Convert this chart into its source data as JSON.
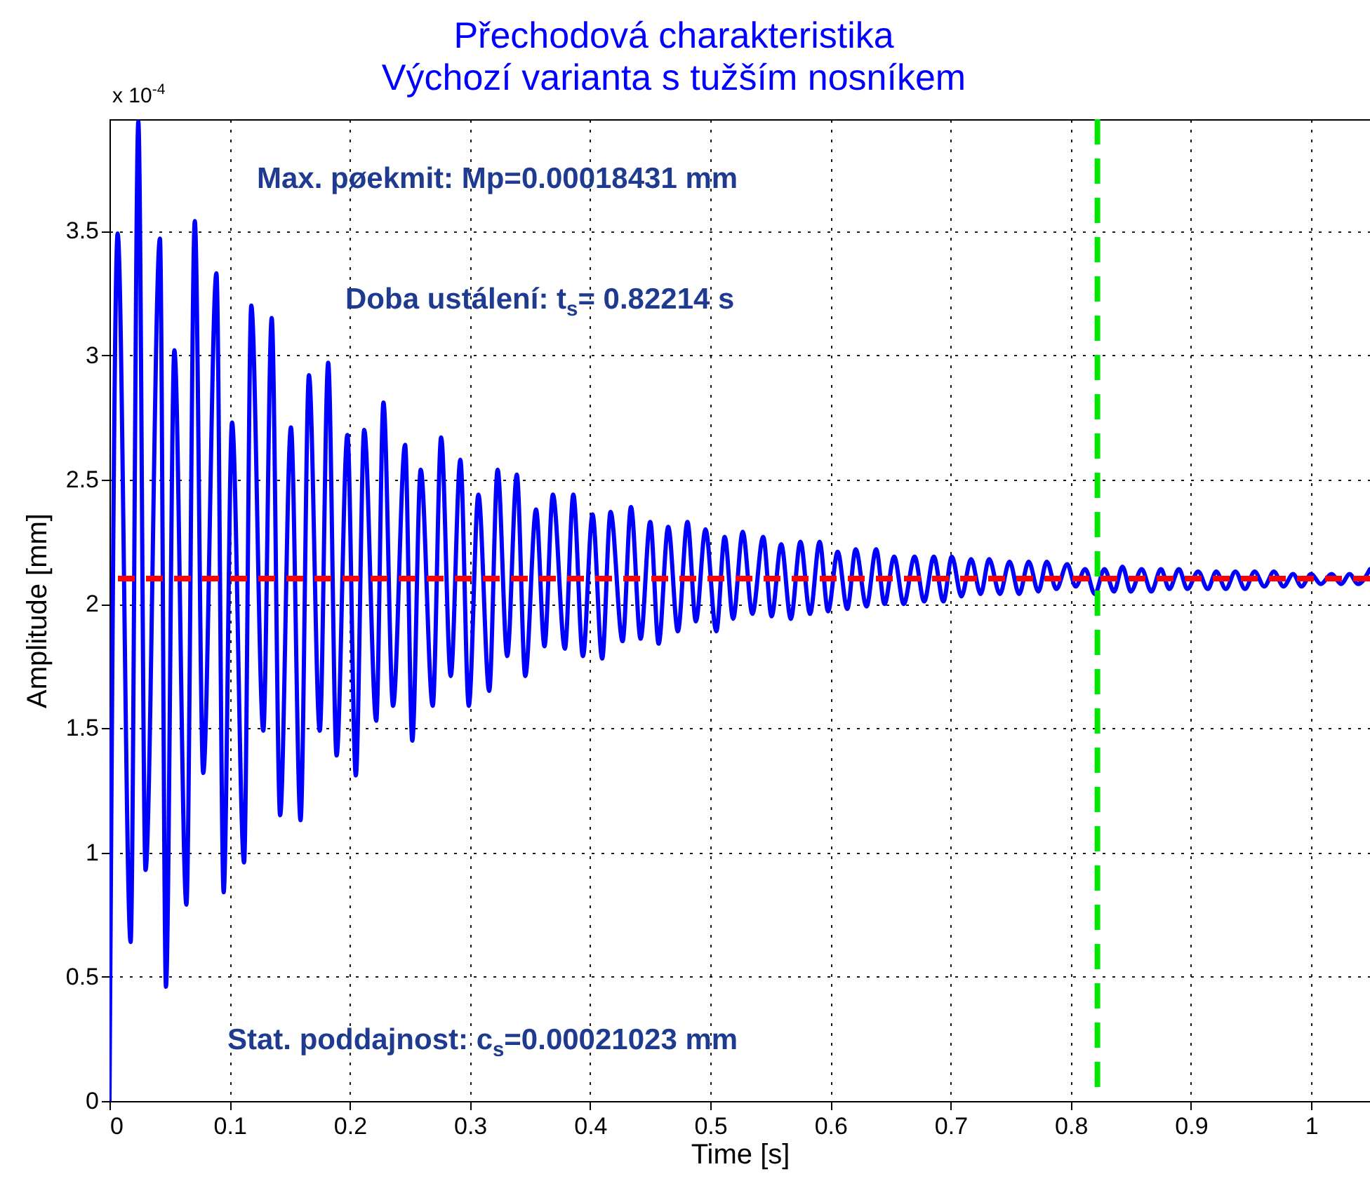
{
  "chart_data": {
    "type": "line",
    "title": "Přechodová charakteristika",
    "subtitle": "Výchozí varianta s tužším nosníkem",
    "xlabel": "Time [s]",
    "ylabel": "Amplitude [mm]",
    "annotations": [
      "x 10$^{-4}$",
      "Max. pøekmit: Mp=0.00018431 mm",
      "Doba ustálení: t$_{s}$= 0.82214 s",
      "Stat. poddajnost: c$_{s}$=0.00021023 mm"
    ],
    "xlim": [
      0,
      1.049
    ],
    "ylim": [
      0,
      3.95
    ],
    "xticks": [
      0,
      0.1,
      0.2,
      0.3,
      0.4,
      0.5,
      0.6,
      0.7,
      0.8,
      0.9,
      1
    ],
    "yticks": [
      0,
      0.5,
      1,
      1.5,
      2,
      2.5,
      3,
      3.5
    ],
    "grid": true,
    "line_style": "solid",
    "series": [
      {
        "color": "#0000ff",
        "x": [
          0,
          0.0068,
          0.0176,
          0.024,
          0.03,
          0.042,
          0.047,
          0.054,
          0.064,
          0.071,
          0.078,
          0.089,
          0.095,
          0.102,
          0.112,
          0.118,
          0.128,
          0.135,
          0.142,
          0.151,
          0.159,
          0.166,
          0.175,
          0.182,
          0.189,
          0.198,
          0.205,
          0.212,
          0.222,
          0.228,
          0.236,
          0.246,
          0.252,
          0.259,
          0.269,
          0.276,
          0.284,
          0.292,
          0.299,
          0.307,
          0.316,
          0.323,
          0.331,
          0.339,
          0.346,
          0.355,
          0.362,
          0.369,
          0.379,
          0.386,
          0.394,
          0.402,
          0.41,
          0.417,
          0.427,
          0.434,
          0.442,
          0.45,
          0.457,
          0.465,
          0.473,
          0.481,
          0.488,
          0.496,
          0.505,
          0.512,
          0.519,
          0.527,
          0.535,
          0.544,
          0.551,
          0.559,
          0.567,
          0.575,
          0.583,
          0.591,
          0.598,
          0.606,
          0.614,
          0.621,
          0.63,
          0.638,
          0.645,
          0.653,
          0.661,
          0.67,
          0.678,
          0.686,
          0.694,
          0.701,
          0.709,
          0.717,
          0.725,
          0.732,
          0.741,
          0.749,
          0.757,
          0.765,
          0.773,
          0.78,
          0.788,
          0.797,
          0.804,
          0.812,
          0.82,
          0.828,
          0.836,
          0.843,
          0.85,
          0.859,
          0.867,
          0.875,
          0.882,
          0.89,
          0.897,
          0.906,
          0.914,
          0.921,
          0.929,
          0.937,
          0.945,
          0.953,
          0.961,
          0.969,
          0.977,
          0.985,
          0.992,
          1,
          1.008,
          1.017,
          1.025,
          1.032,
          1.039,
          1.049
        ],
        "values": [
          0,
          3.49,
          0.64,
          3.94,
          0.93,
          3.47,
          0.46,
          3.02,
          0.79,
          3.54,
          1.32,
          3.33,
          0.84,
          2.73,
          0.96,
          3.2,
          1.49,
          3.15,
          1.15,
          2.71,
          1.13,
          2.92,
          1.49,
          2.97,
          1.39,
          2.68,
          1.31,
          2.7,
          1.53,
          2.81,
          1.59,
          2.64,
          1.45,
          2.54,
          1.59,
          2.67,
          1.71,
          2.58,
          1.59,
          2.44,
          1.65,
          2.54,
          1.79,
          2.52,
          1.71,
          2.38,
          1.83,
          2.44,
          1.82,
          2.44,
          1.79,
          2.36,
          1.78,
          2.37,
          1.85,
          2.39,
          1.86,
          2.33,
          1.84,
          2.31,
          1.89,
          2.33,
          1.93,
          2.3,
          1.89,
          2.27,
          1.94,
          2.29,
          1.96,
          2.27,
          1.95,
          2.24,
          1.94,
          2.25,
          1.96,
          2.25,
          1.97,
          2.21,
          1.98,
          2.22,
          1.99,
          2.22,
          2,
          2.19,
          2,
          2.19,
          2.01,
          2.19,
          2.01,
          2.19,
          2.03,
          2.18,
          2.04,
          2.18,
          2.04,
          2.17,
          2.04,
          2.17,
          2.05,
          2.17,
          2.06,
          2.16,
          2.07,
          2.14,
          2.04,
          2.14,
          2.05,
          2.15,
          2.05,
          2.14,
          2.05,
          2.14,
          2.06,
          2.14,
          2.06,
          2.13,
          2.06,
          2.13,
          2.06,
          2.13,
          2.06,
          2.13,
          2.07,
          2.13,
          2.07,
          2.12,
          2.07,
          2.12,
          2.08,
          2.12,
          2.08,
          2.12,
          2.08,
          2.14
        ]
      }
    ],
    "ref_lines": [
      {
        "axis": "y",
        "value": 2.1023,
        "color": "#ff0000",
        "line_style": "dashed"
      },
      {
        "axis": "x",
        "value": 0.82214,
        "color": "#00e600",
        "line_style": "dashed"
      }
    ]
  }
}
